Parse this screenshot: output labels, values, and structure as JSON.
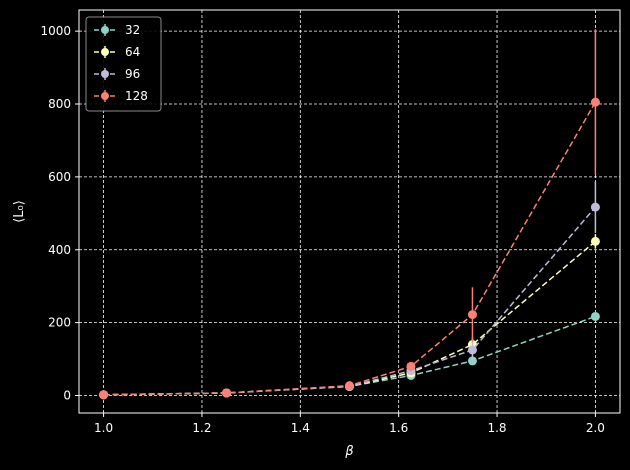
{
  "chart_data": {
    "type": "line",
    "xlabel": "β",
    "ylabel": "⟨L₀⟩",
    "xlim": [
      0.95,
      2.05
    ],
    "ylim": [
      -48,
      1058
    ],
    "x_ticks": [
      1.0,
      1.2,
      1.4,
      1.6,
      1.8,
      2.0
    ],
    "x_tick_labels": [
      "1.0",
      "1.2",
      "1.4",
      "1.6",
      "1.8",
      "2.0"
    ],
    "y_ticks": [
      0,
      200,
      400,
      600,
      800,
      1000
    ],
    "y_tick_labels": [
      "0",
      "200",
      "400",
      "600",
      "800",
      "1000"
    ],
    "grid": true,
    "legend_position": "top-left",
    "x": [
      1.0,
      1.25,
      1.5,
      1.625,
      1.75,
      2.0
    ],
    "series": [
      {
        "name": "32",
        "color": "#8dd3c7",
        "values": [
          2,
          7,
          25,
          55,
          95,
          217
        ],
        "errors": [
          0,
          0,
          0,
          5,
          10,
          10
        ]
      },
      {
        "name": "64",
        "color": "#feffb3",
        "values": [
          2,
          7,
          25,
          62,
          140,
          423
        ],
        "errors": [
          0,
          0,
          0,
          8,
          20,
          20
        ]
      },
      {
        "name": "96",
        "color": "#bfbbd9",
        "values": [
          2,
          7,
          25,
          68,
          125,
          517
        ],
        "errors": [
          0,
          0,
          0,
          8,
          30,
          70
        ]
      },
      {
        "name": "128",
        "color": "#fa8174",
        "values": [
          2,
          7,
          27,
          80,
          222,
          805
        ],
        "errors": [
          0,
          0,
          0,
          10,
          75,
          200
        ]
      }
    ]
  }
}
